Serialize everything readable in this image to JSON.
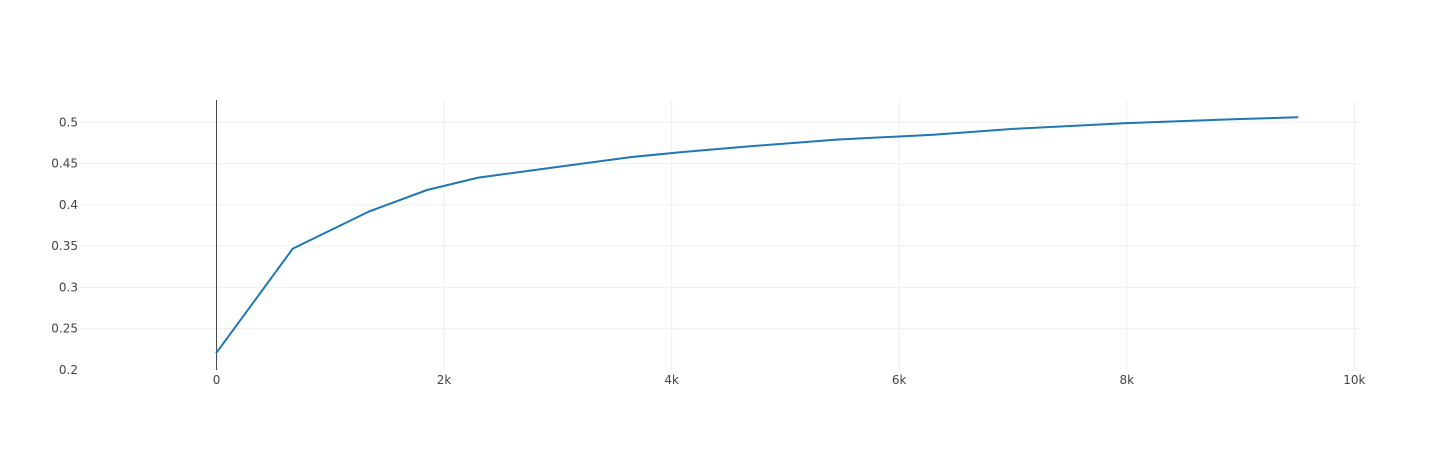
{
  "chart_data": {
    "type": "line",
    "title": "",
    "xlabel": "",
    "ylabel": "",
    "xlim": [
      -1200,
      10050
    ],
    "ylim": [
      0.2,
      0.527
    ],
    "grid": true,
    "x_ticks": [
      {
        "value": 0,
        "label": "0"
      },
      {
        "value": 2000,
        "label": "2k"
      },
      {
        "value": 4000,
        "label": "4k"
      },
      {
        "value": 6000,
        "label": "6k"
      },
      {
        "value": 8000,
        "label": "8k"
      },
      {
        "value": 10000,
        "label": "10k"
      }
    ],
    "y_ticks": [
      {
        "value": 0.2,
        "label": "0.2"
      },
      {
        "value": 0.25,
        "label": "0.25"
      },
      {
        "value": 0.3,
        "label": "0.3"
      },
      {
        "value": 0.35,
        "label": "0.35"
      },
      {
        "value": 0.4,
        "label": "0.4"
      },
      {
        "value": 0.45,
        "label": "0.45"
      },
      {
        "value": 0.5,
        "label": "0.5"
      }
    ],
    "series": [
      {
        "color": "#1f77b4",
        "x": [
          0,
          670,
          1340,
          1850,
          2300,
          3000,
          3650,
          4100,
          4600,
          5450,
          6300,
          7000,
          8000,
          9000,
          9500
        ],
        "y": [
          0.221,
          0.347,
          0.392,
          0.418,
          0.433,
          0.446,
          0.458,
          0.464,
          0.47,
          0.479,
          0.485,
          0.492,
          0.499,
          0.504,
          0.506
        ]
      }
    ]
  }
}
